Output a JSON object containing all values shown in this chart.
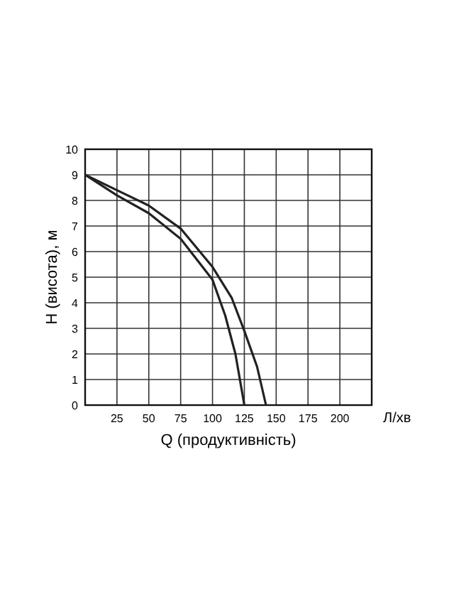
{
  "chart_data": {
    "type": "line",
    "xlabel": "Q (продуктивність)",
    "ylabel": "H (висота), м",
    "annotations": [
      "Л/хв"
    ],
    "xlim": [
      0,
      225
    ],
    "ylim": [
      0,
      10
    ],
    "xticks": [
      {
        "value": 0,
        "label": null
      },
      25,
      50,
      75,
      100,
      125,
      150,
      175,
      200
    ],
    "yticks": [
      0,
      1,
      2,
      3,
      4,
      5,
      6,
      7,
      8,
      9,
      10
    ],
    "grid": true,
    "line_style": "solid",
    "marker": "none",
    "series": [
      {
        "color": "#222222",
        "x": [
          0,
          25,
          50,
          75,
          100,
          110,
          118,
          125
        ],
        "values": [
          9,
          8.2,
          7.5,
          6.5,
          4.9,
          3.5,
          2,
          0
        ]
      },
      {
        "color": "#222222",
        "x": [
          0,
          25,
          50,
          75,
          100,
          115,
          125,
          135,
          142
        ],
        "values": [
          9,
          8.4,
          7.8,
          6.9,
          5.4,
          4.2,
          2.9,
          1.5,
          0
        ]
      }
    ]
  }
}
